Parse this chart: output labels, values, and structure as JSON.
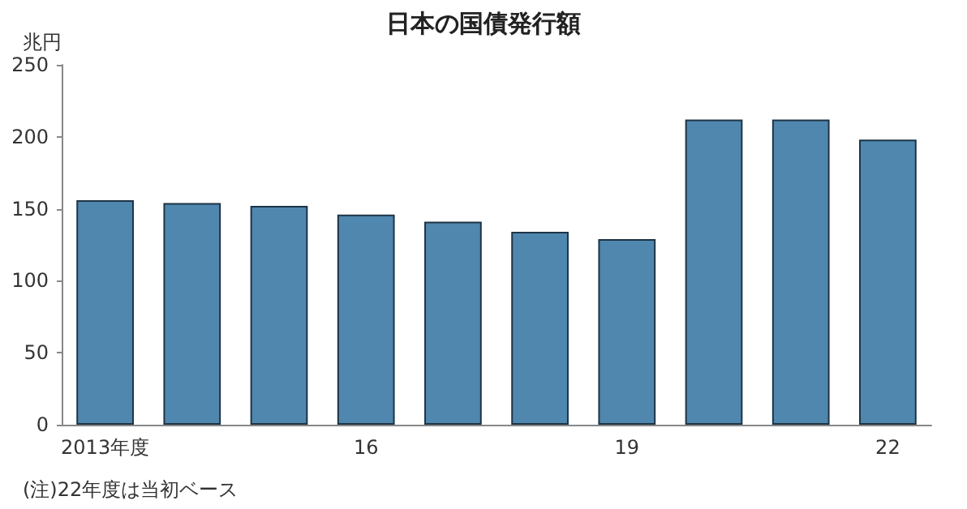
{
  "chart_data": {
    "type": "bar",
    "title": "日本の国債発行額",
    "ylabel": "兆円",
    "categories": [
      "2013年度",
      null,
      null,
      "16",
      null,
      null,
      "19",
      null,
      null,
      "22"
    ],
    "values": [
      156,
      154,
      152,
      146,
      141,
      134,
      129,
      212,
      212,
      198
    ],
    "color": "#4f87ae",
    "ylim": [
      0,
      250
    ],
    "yticks": [
      0,
      50,
      100,
      150,
      200,
      250
    ],
    "grid": false,
    "annotations": [
      "(注)22年度は当初ベース"
    ]
  }
}
